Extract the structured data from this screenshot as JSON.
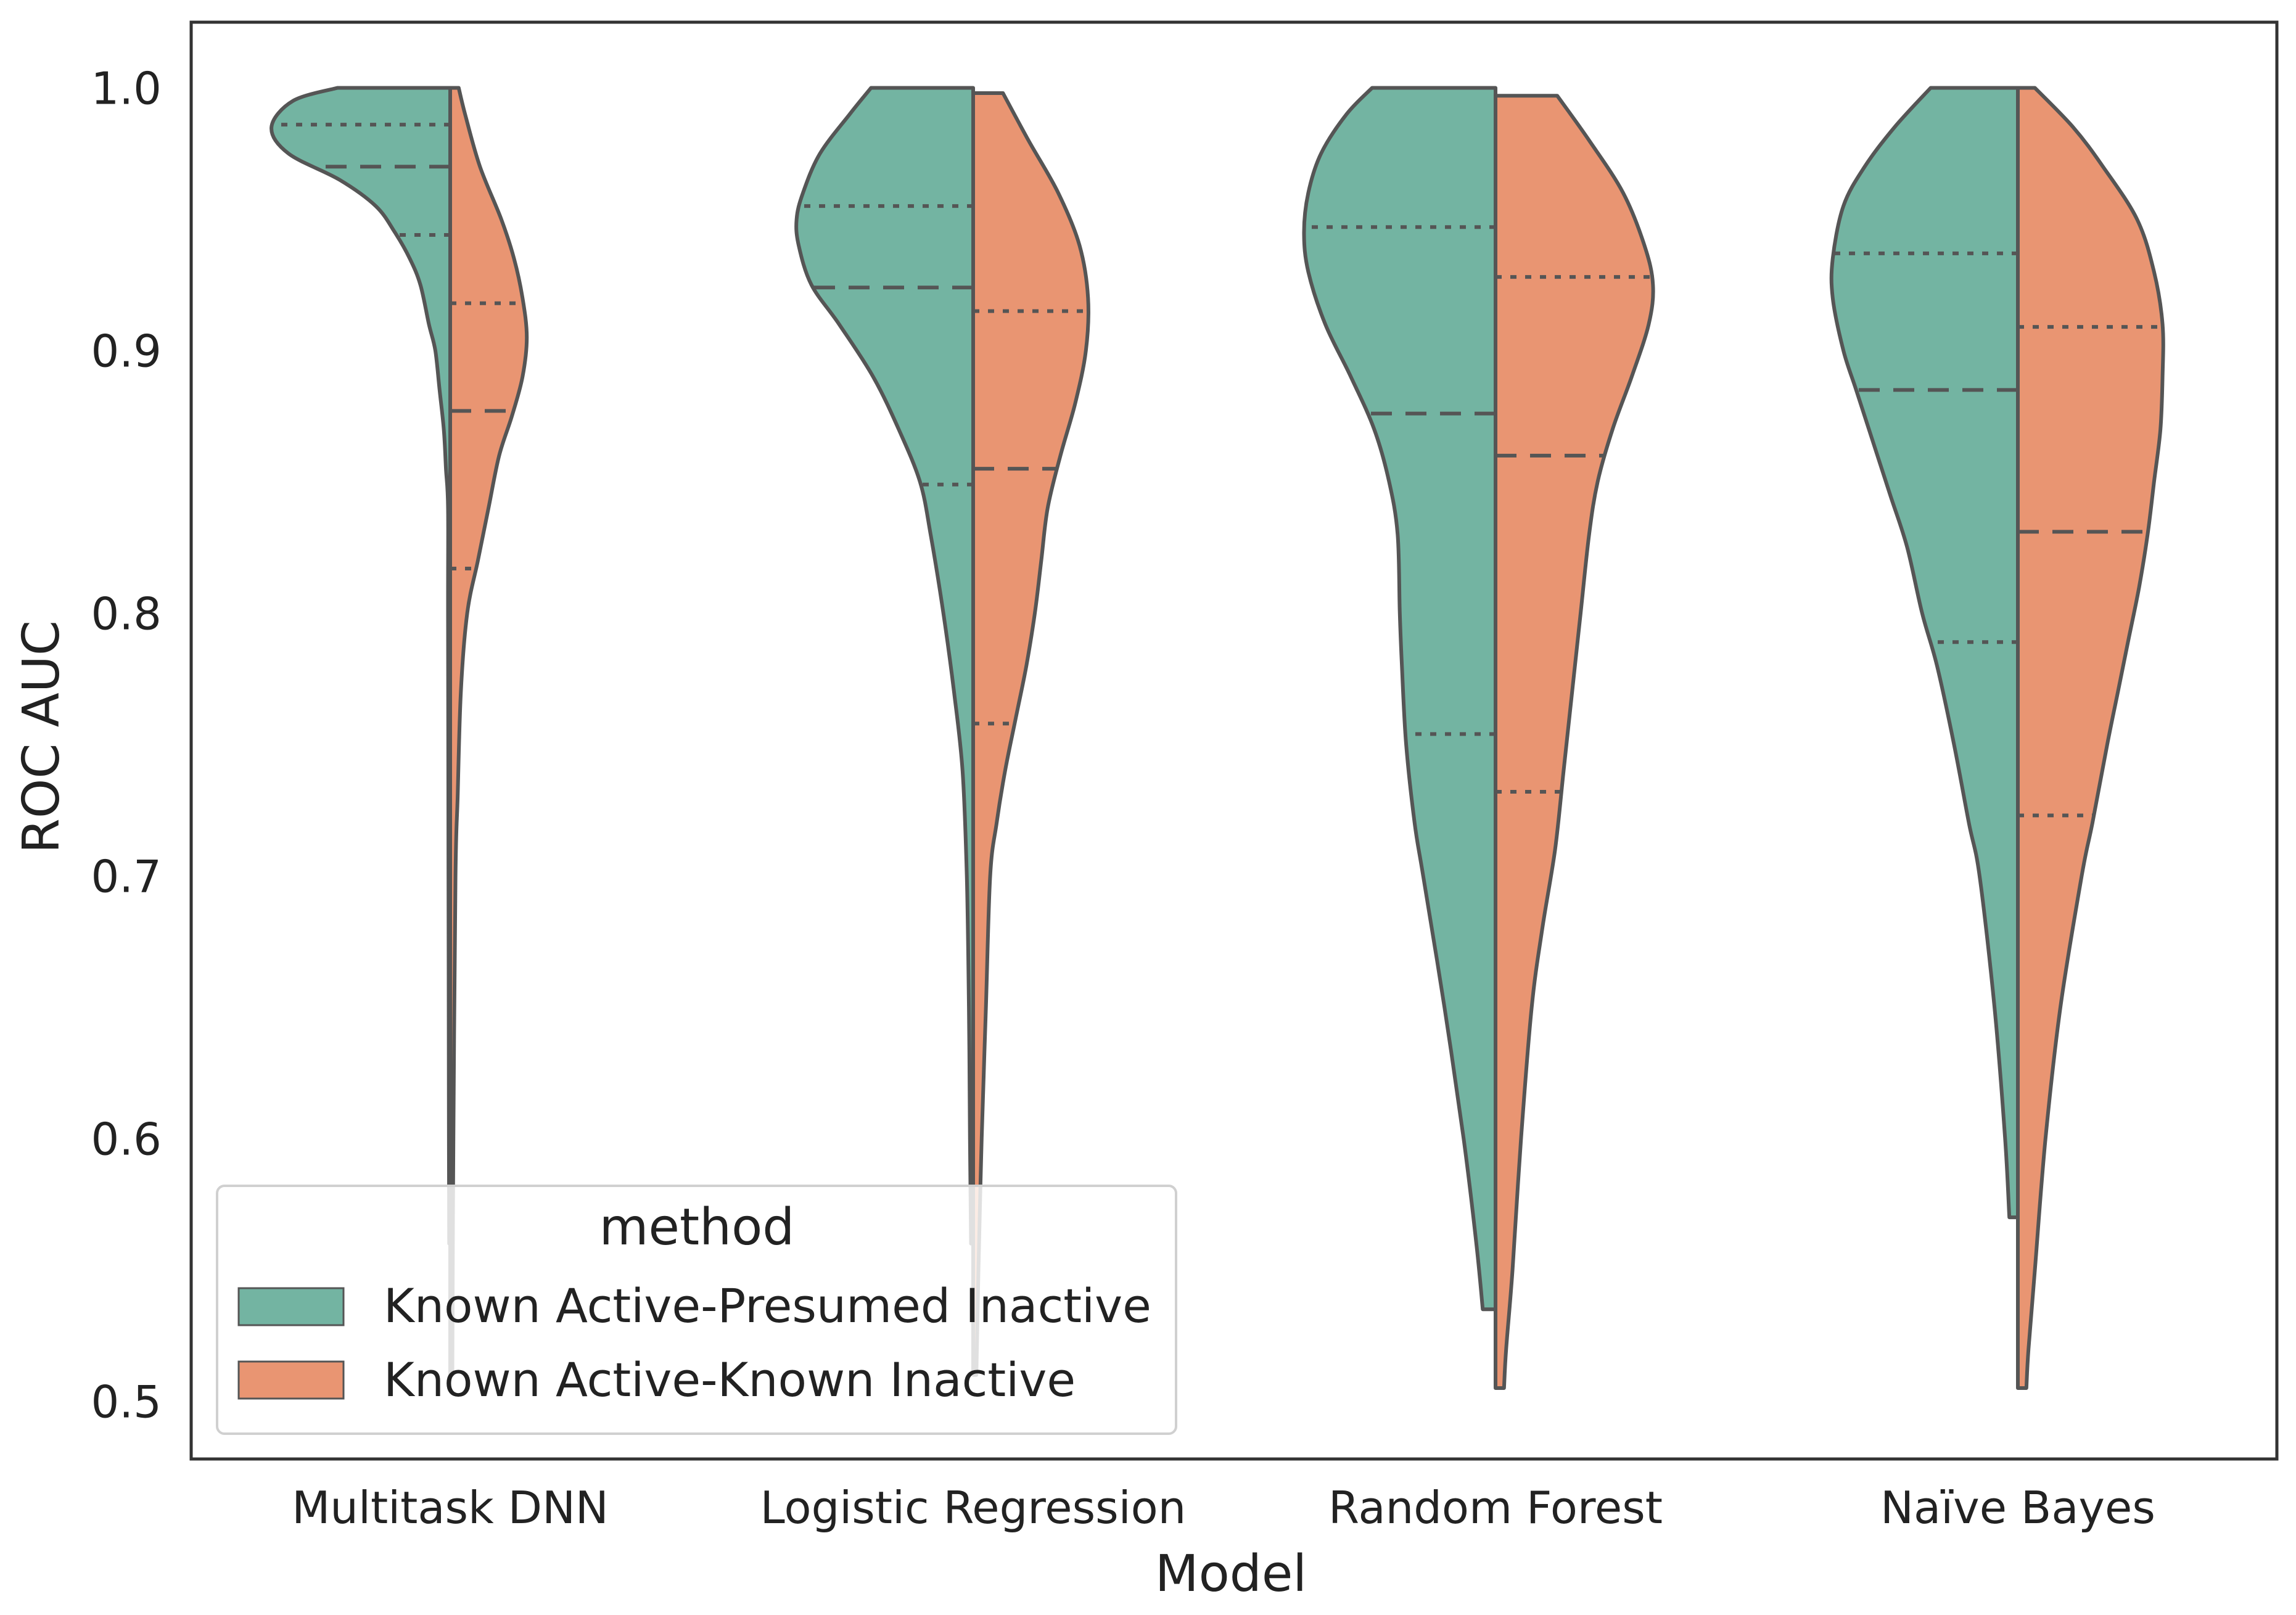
{
  "chart_data": {
    "type": "violin",
    "split": true,
    "title": "",
    "xlabel": "Model",
    "ylabel": "ROC AUC",
    "ylim": [
      0.478,
      1.025
    ],
    "yticks": [
      0.5,
      0.6,
      0.7,
      0.8,
      0.9,
      1.0
    ],
    "ytick_labels": [
      "0.5",
      "0.6",
      "0.7",
      "0.8",
      "0.9",
      "1.0"
    ],
    "grid": false,
    "categories": [
      "Multitask DNN",
      "Logistic Regression",
      "Random Forest",
      "Naïve Bayes"
    ],
    "legend": {
      "title": "method",
      "position": "lower-left",
      "entries": [
        {
          "label": "Known Active-Presumed Inactive",
          "color": "#73b4a2"
        },
        {
          "label": "Known Active-Known Inactive",
          "color": "#e99572"
        }
      ]
    },
    "series": [
      {
        "name": "Known Active-Presumed Inactive",
        "side": "left",
        "color": "#73b4a2",
        "violins": [
          {
            "category": "Multitask DNN",
            "min": 0.56,
            "max": 1.0,
            "q1": 0.944,
            "median": 0.97,
            "q3": 0.986,
            "profile": [
              [
                1.0,
                0.53
              ],
              [
                0.995,
                0.74
              ],
              [
                0.985,
                0.84
              ],
              [
                0.975,
                0.76
              ],
              [
                0.965,
                0.52
              ],
              [
                0.955,
                0.35
              ],
              [
                0.945,
                0.26
              ],
              [
                0.935,
                0.19
              ],
              [
                0.925,
                0.14
              ],
              [
                0.91,
                0.1
              ],
              [
                0.9,
                0.07
              ],
              [
                0.885,
                0.05
              ],
              [
                0.87,
                0.03
              ],
              [
                0.855,
                0.02
              ],
              [
                0.84,
                0.01
              ],
              [
                0.8,
                0.01
              ],
              [
                0.7,
                0.008
              ],
              [
                0.6,
                0.006
              ],
              [
                0.56,
                0.005
              ]
            ]
          },
          {
            "category": "Logistic Regression",
            "min": 0.56,
            "max": 1.0,
            "q1": 0.849,
            "median": 0.924,
            "q3": 0.955,
            "profile": [
              [
                1.0,
                0.48
              ],
              [
                0.99,
                0.58
              ],
              [
                0.975,
                0.72
              ],
              [
                0.96,
                0.8
              ],
              [
                0.95,
                0.83
              ],
              [
                0.94,
                0.82
              ],
              [
                0.925,
                0.76
              ],
              [
                0.91,
                0.63
              ],
              [
                0.89,
                0.47
              ],
              [
                0.87,
                0.35
              ],
              [
                0.85,
                0.25
              ],
              [
                0.83,
                0.2
              ],
              [
                0.8,
                0.14
              ],
              [
                0.77,
                0.09
              ],
              [
                0.74,
                0.05
              ],
              [
                0.7,
                0.03
              ],
              [
                0.65,
                0.02
              ],
              [
                0.6,
                0.015
              ],
              [
                0.56,
                0.01
              ]
            ]
          },
          {
            "category": "Random Forest",
            "min": 0.535,
            "max": 1.0,
            "q1": 0.754,
            "median": 0.876,
            "q3": 0.947,
            "profile": [
              [
                1.0,
                0.58
              ],
              [
                0.99,
                0.7
              ],
              [
                0.975,
                0.82
              ],
              [
                0.96,
                0.88
              ],
              [
                0.945,
                0.9
              ],
              [
                0.93,
                0.88
              ],
              [
                0.91,
                0.8
              ],
              [
                0.89,
                0.68
              ],
              [
                0.87,
                0.57
              ],
              [
                0.85,
                0.5
              ],
              [
                0.83,
                0.46
              ],
              [
                0.8,
                0.45
              ],
              [
                0.78,
                0.44
              ],
              [
                0.75,
                0.42
              ],
              [
                0.72,
                0.38
              ],
              [
                0.7,
                0.34
              ],
              [
                0.65,
                0.24
              ],
              [
                0.6,
                0.15
              ],
              [
                0.56,
                0.09
              ],
              [
                0.535,
                0.06
              ]
            ]
          },
          {
            "category": "Naïve Bayes",
            "min": 0.57,
            "max": 1.0,
            "q1": 0.789,
            "median": 0.885,
            "q3": 0.937,
            "profile": [
              [
                1.0,
                0.41
              ],
              [
                0.985,
                0.58
              ],
              [
                0.97,
                0.72
              ],
              [
                0.955,
                0.82
              ],
              [
                0.935,
                0.87
              ],
              [
                0.92,
                0.87
              ],
              [
                0.9,
                0.82
              ],
              [
                0.885,
                0.76
              ],
              [
                0.865,
                0.68
              ],
              [
                0.845,
                0.6
              ],
              [
                0.825,
                0.52
              ],
              [
                0.8,
                0.45
              ],
              [
                0.78,
                0.38
              ],
              [
                0.75,
                0.3
              ],
              [
                0.72,
                0.23
              ],
              [
                0.7,
                0.18
              ],
              [
                0.65,
                0.11
              ],
              [
                0.6,
                0.06
              ],
              [
                0.57,
                0.04
              ]
            ]
          }
        ]
      },
      {
        "name": "Known Active-Known Inactive",
        "side": "right",
        "color": "#e99572",
        "violins": [
          {
            "category": "Multitask DNN",
            "min": 0.51,
            "max": 1.0,
            "q1": 0.817,
            "median": 0.877,
            "q3": 0.918,
            "profile": [
              [
                1.0,
                0.04
              ],
              [
                0.99,
                0.07
              ],
              [
                0.97,
                0.14
              ],
              [
                0.95,
                0.24
              ],
              [
                0.935,
                0.3
              ],
              [
                0.92,
                0.34
              ],
              [
                0.905,
                0.36
              ],
              [
                0.89,
                0.34
              ],
              [
                0.875,
                0.29
              ],
              [
                0.86,
                0.23
              ],
              [
                0.84,
                0.18
              ],
              [
                0.82,
                0.13
              ],
              [
                0.8,
                0.08
              ],
              [
                0.77,
                0.05
              ],
              [
                0.73,
                0.035
              ],
              [
                0.7,
                0.025
              ],
              [
                0.6,
                0.015
              ],
              [
                0.51,
                0.01
              ]
            ]
          },
          {
            "category": "Logistic Regression",
            "min": 0.51,
            "max": 0.998,
            "q1": 0.758,
            "median": 0.855,
            "q3": 0.915,
            "profile": [
              [
                0.998,
                0.14
              ],
              [
                0.98,
                0.26
              ],
              [
                0.96,
                0.4
              ],
              [
                0.94,
                0.5
              ],
              [
                0.92,
                0.54
              ],
              [
                0.9,
                0.53
              ],
              [
                0.88,
                0.48
              ],
              [
                0.86,
                0.41
              ],
              [
                0.84,
                0.35
              ],
              [
                0.82,
                0.32
              ],
              [
                0.8,
                0.29
              ],
              [
                0.78,
                0.25
              ],
              [
                0.76,
                0.2
              ],
              [
                0.74,
                0.15
              ],
              [
                0.72,
                0.11
              ],
              [
                0.7,
                0.08
              ],
              [
                0.65,
                0.06
              ],
              [
                0.6,
                0.04
              ],
              [
                0.55,
                0.025
              ],
              [
                0.51,
                0.015
              ]
            ]
          },
          {
            "category": "Random Forest",
            "min": 0.505,
            "max": 0.997,
            "q1": 0.732,
            "median": 0.86,
            "q3": 0.928,
            "profile": [
              [
                0.997,
                0.29
              ],
              [
                0.98,
                0.44
              ],
              [
                0.96,
                0.6
              ],
              [
                0.94,
                0.7
              ],
              [
                0.925,
                0.74
              ],
              [
                0.91,
                0.72
              ],
              [
                0.89,
                0.64
              ],
              [
                0.87,
                0.55
              ],
              [
                0.85,
                0.48
              ],
              [
                0.83,
                0.44
              ],
              [
                0.8,
                0.4
              ],
              [
                0.77,
                0.36
              ],
              [
                0.74,
                0.32
              ],
              [
                0.71,
                0.28
              ],
              [
                0.68,
                0.22
              ],
              [
                0.65,
                0.17
              ],
              [
                0.6,
                0.12
              ],
              [
                0.55,
                0.08
              ],
              [
                0.52,
                0.05
              ],
              [
                0.505,
                0.04
              ]
            ]
          },
          {
            "category": "Naïve Bayes",
            "min": 0.505,
            "max": 1.0,
            "q1": 0.723,
            "median": 0.831,
            "q3": 0.909,
            "profile": [
              [
                1.0,
                0.08
              ],
              [
                0.985,
                0.26
              ],
              [
                0.97,
                0.4
              ],
              [
                0.95,
                0.56
              ],
              [
                0.93,
                0.64
              ],
              [
                0.91,
                0.68
              ],
              [
                0.89,
                0.68
              ],
              [
                0.87,
                0.67
              ],
              [
                0.85,
                0.64
              ],
              [
                0.83,
                0.61
              ],
              [
                0.81,
                0.57
              ],
              [
                0.79,
                0.52
              ],
              [
                0.77,
                0.47
              ],
              [
                0.75,
                0.42
              ],
              [
                0.72,
                0.35
              ],
              [
                0.7,
                0.3
              ],
              [
                0.65,
                0.2
              ],
              [
                0.6,
                0.13
              ],
              [
                0.55,
                0.08
              ],
              [
                0.52,
                0.05
              ],
              [
                0.505,
                0.04
              ]
            ]
          }
        ]
      }
    ]
  }
}
